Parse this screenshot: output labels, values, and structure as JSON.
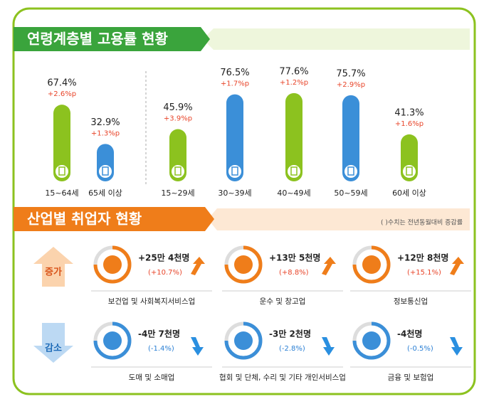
{
  "chart_data": {
    "type": "bar",
    "title": "연령계층별 고용률 현황",
    "categories": [
      "15~64세",
      "65세 이상",
      "15~29세",
      "30~39세",
      "40~49세",
      "50~59세",
      "60세 이상"
    ],
    "values": [
      67.4,
      32.9,
      45.9,
      76.5,
      77.6,
      75.7,
      41.3
    ],
    "value_labels": [
      "67.4%",
      "32.9%",
      "45.9%",
      "76.5%",
      "77.6%",
      "75.7%",
      "41.3%"
    ],
    "changes": [
      2.6,
      1.3,
      3.9,
      1.7,
      1.2,
      2.9,
      1.6
    ],
    "change_labels": [
      "+2.6%p",
      "+1.3%p",
      "+3.9%p",
      "+1.7%p",
      "+1.2%p",
      "+2.9%p",
      "+1.6%p"
    ],
    "colors": [
      "#8cc21f",
      "#3b8fd8",
      "#8cc21f",
      "#3b8fd8",
      "#8cc21f",
      "#3b8fd8",
      "#8cc21f"
    ]
  },
  "industry": {
    "title": "산업별 취업자 현황",
    "note": "( )수치는 전년동월대비 증감률",
    "groups": [
      {
        "label": "증가",
        "items": [
          {
            "name": "보건업 및 사회복지서비스업",
            "change": "+25만 4천명",
            "rate": "(+10.7%)"
          },
          {
            "name": "운수 및 창고업",
            "change": "+13만 5천명",
            "rate": "(+8.8%)"
          },
          {
            "name": "정보통신업",
            "change": "+12만 8천명",
            "rate": "(+15.1%)"
          }
        ]
      },
      {
        "label": "감소",
        "items": [
          {
            "name": "도매 및 소매업",
            "change": "-4만 7천명",
            "rate": "(-1.4%)"
          },
          {
            "name": "협회 및 단체, 수리 및 기타 개인서비스업",
            "change": "-3만 2천명",
            "rate": "(-2.8%)"
          },
          {
            "name": "금융 및 보험업",
            "change": "-4천명",
            "rate": "(-0.5%)"
          }
        ]
      }
    ]
  }
}
